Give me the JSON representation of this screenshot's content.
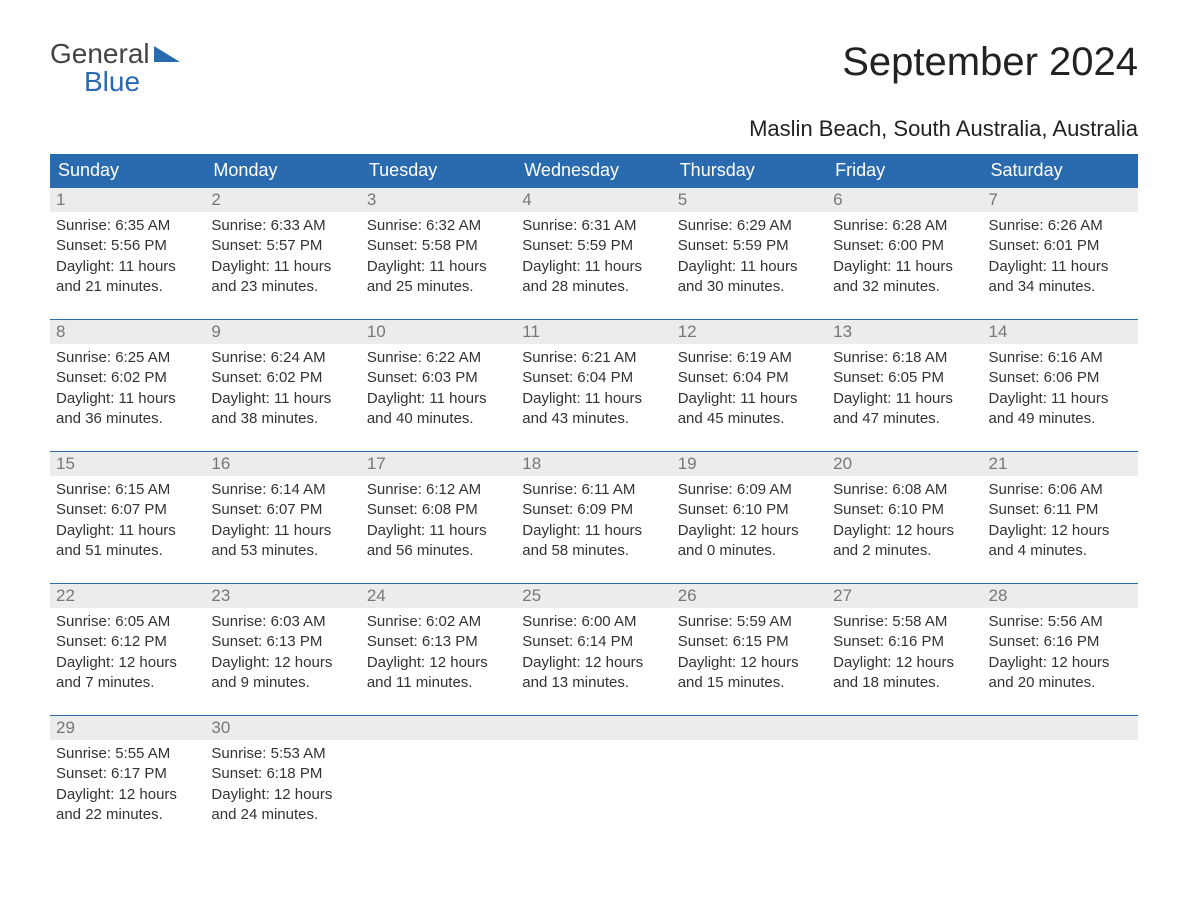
{
  "logo": {
    "word1": "General",
    "word2": "Blue"
  },
  "title": "September 2024",
  "subtitle": "Maslin Beach, South Australia, Australia",
  "colors": {
    "header_bg": "#2a6bb0",
    "header_text": "#ffffff",
    "daynum_bg": "#ececec",
    "daynum_text": "#777777",
    "body_text": "#333333",
    "week_border": "#2a6bb0",
    "page_bg": "#ffffff",
    "logo_gray": "#444444",
    "logo_blue": "#2a6bb0"
  },
  "typography": {
    "title_fontsize": 40,
    "subtitle_fontsize": 22,
    "header_fontsize": 18,
    "daynum_fontsize": 17,
    "body_fontsize": 15,
    "font_family": "Arial"
  },
  "day_headers": [
    "Sunday",
    "Monday",
    "Tuesday",
    "Wednesday",
    "Thursday",
    "Friday",
    "Saturday"
  ],
  "weeks": [
    [
      {
        "num": "1",
        "sunrise": "Sunrise: 6:35 AM",
        "sunset": "Sunset: 5:56 PM",
        "daylight": "Daylight: 11 hours and 21 minutes."
      },
      {
        "num": "2",
        "sunrise": "Sunrise: 6:33 AM",
        "sunset": "Sunset: 5:57 PM",
        "daylight": "Daylight: 11 hours and 23 minutes."
      },
      {
        "num": "3",
        "sunrise": "Sunrise: 6:32 AM",
        "sunset": "Sunset: 5:58 PM",
        "daylight": "Daylight: 11 hours and 25 minutes."
      },
      {
        "num": "4",
        "sunrise": "Sunrise: 6:31 AM",
        "sunset": "Sunset: 5:59 PM",
        "daylight": "Daylight: 11 hours and 28 minutes."
      },
      {
        "num": "5",
        "sunrise": "Sunrise: 6:29 AM",
        "sunset": "Sunset: 5:59 PM",
        "daylight": "Daylight: 11 hours and 30 minutes."
      },
      {
        "num": "6",
        "sunrise": "Sunrise: 6:28 AM",
        "sunset": "Sunset: 6:00 PM",
        "daylight": "Daylight: 11 hours and 32 minutes."
      },
      {
        "num": "7",
        "sunrise": "Sunrise: 6:26 AM",
        "sunset": "Sunset: 6:01 PM",
        "daylight": "Daylight: 11 hours and 34 minutes."
      }
    ],
    [
      {
        "num": "8",
        "sunrise": "Sunrise: 6:25 AM",
        "sunset": "Sunset: 6:02 PM",
        "daylight": "Daylight: 11 hours and 36 minutes."
      },
      {
        "num": "9",
        "sunrise": "Sunrise: 6:24 AM",
        "sunset": "Sunset: 6:02 PM",
        "daylight": "Daylight: 11 hours and 38 minutes."
      },
      {
        "num": "10",
        "sunrise": "Sunrise: 6:22 AM",
        "sunset": "Sunset: 6:03 PM",
        "daylight": "Daylight: 11 hours and 40 minutes."
      },
      {
        "num": "11",
        "sunrise": "Sunrise: 6:21 AM",
        "sunset": "Sunset: 6:04 PM",
        "daylight": "Daylight: 11 hours and 43 minutes."
      },
      {
        "num": "12",
        "sunrise": "Sunrise: 6:19 AM",
        "sunset": "Sunset: 6:04 PM",
        "daylight": "Daylight: 11 hours and 45 minutes."
      },
      {
        "num": "13",
        "sunrise": "Sunrise: 6:18 AM",
        "sunset": "Sunset: 6:05 PM",
        "daylight": "Daylight: 11 hours and 47 minutes."
      },
      {
        "num": "14",
        "sunrise": "Sunrise: 6:16 AM",
        "sunset": "Sunset: 6:06 PM",
        "daylight": "Daylight: 11 hours and 49 minutes."
      }
    ],
    [
      {
        "num": "15",
        "sunrise": "Sunrise: 6:15 AM",
        "sunset": "Sunset: 6:07 PM",
        "daylight": "Daylight: 11 hours and 51 minutes."
      },
      {
        "num": "16",
        "sunrise": "Sunrise: 6:14 AM",
        "sunset": "Sunset: 6:07 PM",
        "daylight": "Daylight: 11 hours and 53 minutes."
      },
      {
        "num": "17",
        "sunrise": "Sunrise: 6:12 AM",
        "sunset": "Sunset: 6:08 PM",
        "daylight": "Daylight: 11 hours and 56 minutes."
      },
      {
        "num": "18",
        "sunrise": "Sunrise: 6:11 AM",
        "sunset": "Sunset: 6:09 PM",
        "daylight": "Daylight: 11 hours and 58 minutes."
      },
      {
        "num": "19",
        "sunrise": "Sunrise: 6:09 AM",
        "sunset": "Sunset: 6:10 PM",
        "daylight": "Daylight: 12 hours and 0 minutes."
      },
      {
        "num": "20",
        "sunrise": "Sunrise: 6:08 AM",
        "sunset": "Sunset: 6:10 PM",
        "daylight": "Daylight: 12 hours and 2 minutes."
      },
      {
        "num": "21",
        "sunrise": "Sunrise: 6:06 AM",
        "sunset": "Sunset: 6:11 PM",
        "daylight": "Daylight: 12 hours and 4 minutes."
      }
    ],
    [
      {
        "num": "22",
        "sunrise": "Sunrise: 6:05 AM",
        "sunset": "Sunset: 6:12 PM",
        "daylight": "Daylight: 12 hours and 7 minutes."
      },
      {
        "num": "23",
        "sunrise": "Sunrise: 6:03 AM",
        "sunset": "Sunset: 6:13 PM",
        "daylight": "Daylight: 12 hours and 9 minutes."
      },
      {
        "num": "24",
        "sunrise": "Sunrise: 6:02 AM",
        "sunset": "Sunset: 6:13 PM",
        "daylight": "Daylight: 12 hours and 11 minutes."
      },
      {
        "num": "25",
        "sunrise": "Sunrise: 6:00 AM",
        "sunset": "Sunset: 6:14 PM",
        "daylight": "Daylight: 12 hours and 13 minutes."
      },
      {
        "num": "26",
        "sunrise": "Sunrise: 5:59 AM",
        "sunset": "Sunset: 6:15 PM",
        "daylight": "Daylight: 12 hours and 15 minutes."
      },
      {
        "num": "27",
        "sunrise": "Sunrise: 5:58 AM",
        "sunset": "Sunset: 6:16 PM",
        "daylight": "Daylight: 12 hours and 18 minutes."
      },
      {
        "num": "28",
        "sunrise": "Sunrise: 5:56 AM",
        "sunset": "Sunset: 6:16 PM",
        "daylight": "Daylight: 12 hours and 20 minutes."
      }
    ],
    [
      {
        "num": "29",
        "sunrise": "Sunrise: 5:55 AM",
        "sunset": "Sunset: 6:17 PM",
        "daylight": "Daylight: 12 hours and 22 minutes."
      },
      {
        "num": "30",
        "sunrise": "Sunrise: 5:53 AM",
        "sunset": "Sunset: 6:18 PM",
        "daylight": "Daylight: 12 hours and 24 minutes."
      },
      null,
      null,
      null,
      null,
      null
    ]
  ]
}
